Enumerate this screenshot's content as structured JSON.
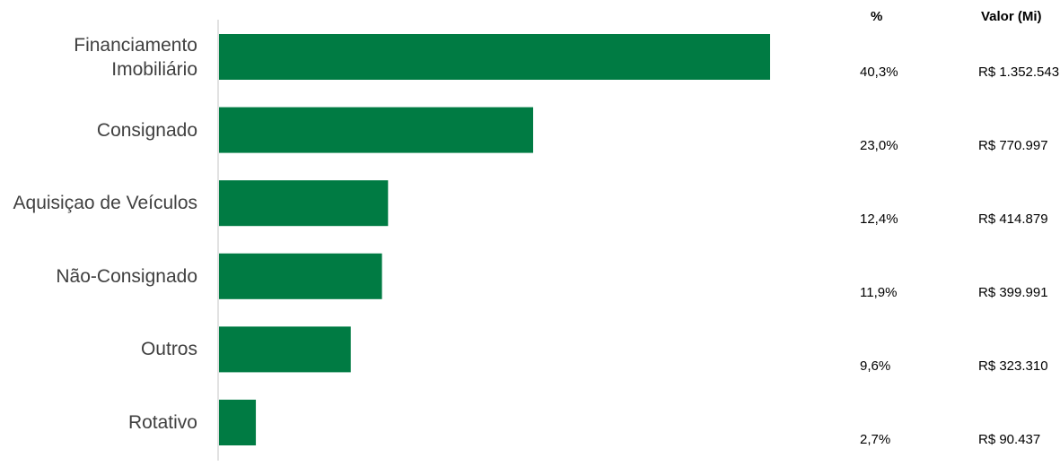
{
  "colors": {
    "bar": "#007b43",
    "axis": "#d9d9d9"
  },
  "table": {
    "pct_header": "%",
    "value_header": "Valor (Mi)"
  },
  "chart_data": {
    "type": "bar",
    "orientation": "horizontal",
    "categories": [
      "Financiamento Imobiliário",
      "Consignado",
      "Aquisiçao de Veículos",
      "Não-Consignado",
      "Outros",
      "Rotativo"
    ],
    "category_lines": [
      [
        "Financiamento",
        "Imobiliário"
      ],
      [
        "Consignado"
      ],
      [
        "Aquisiçao de Veículos"
      ],
      [
        "Não-Consignado"
      ],
      [
        "Outros"
      ],
      [
        "Rotativo"
      ]
    ],
    "values": [
      1352543,
      770997,
      414879,
      399991,
      323310,
      90437
    ],
    "percent_labels": [
      "40,3%",
      "23,0%",
      "12,4%",
      "11,9%",
      "9,6%",
      "2,7%"
    ],
    "value_labels": [
      "R$ 1.352.543",
      "R$ 770.997",
      "R$ 414.879",
      "R$ 399.991",
      "R$ 323.310",
      "R$ 90.437"
    ],
    "grid": false,
    "legend": "none"
  }
}
